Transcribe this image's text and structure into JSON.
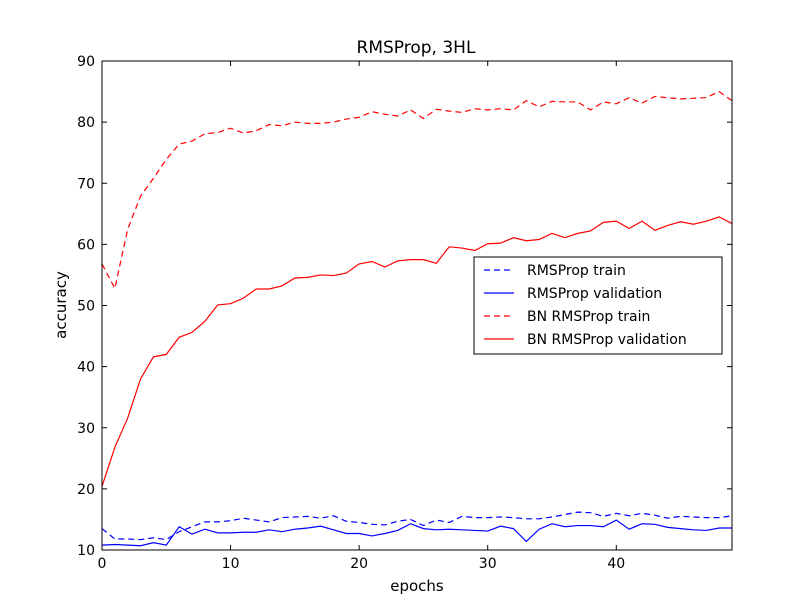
{
  "chart_data": {
    "type": "line",
    "title": "RMSProp, 3HL",
    "xlabel": "epochs",
    "ylabel": "accuracy",
    "xlim": [
      0,
      49
    ],
    "ylim": [
      10,
      90
    ],
    "xticks": [
      0,
      10,
      20,
      30,
      40
    ],
    "yticks": [
      10,
      20,
      30,
      40,
      50,
      60,
      70,
      80,
      90
    ],
    "grid": false,
    "legend_position": "center-right",
    "x": [
      0,
      1,
      2,
      3,
      4,
      5,
      6,
      7,
      8,
      9,
      10,
      11,
      12,
      13,
      14,
      15,
      16,
      17,
      18,
      19,
      20,
      21,
      22,
      23,
      24,
      25,
      26,
      27,
      28,
      29,
      30,
      31,
      32,
      33,
      34,
      35,
      36,
      37,
      38,
      39,
      40,
      41,
      42,
      43,
      44,
      45,
      46,
      47,
      48,
      49
    ],
    "series": [
      {
        "name": "RMSProp train",
        "color": "#0000ff",
        "style": "dashed",
        "values": [
          13.5,
          11.8,
          11.8,
          11.7,
          12.0,
          11.7,
          13.0,
          13.8,
          14.6,
          14.6,
          14.8,
          15.2,
          14.9,
          14.6,
          15.3,
          15.4,
          15.5,
          15.2,
          15.6,
          14.7,
          14.5,
          14.2,
          14.1,
          14.7,
          15.0,
          14.0,
          14.9,
          14.5,
          15.5,
          15.3,
          15.3,
          15.4,
          15.3,
          15.1,
          15.1,
          15.4,
          15.8,
          16.2,
          16.1,
          15.5,
          16.0,
          15.6,
          16.0,
          15.7,
          15.2,
          15.5,
          15.4,
          15.3,
          15.3,
          15.6
        ]
      },
      {
        "name": "RMSProp validation",
        "color": "#0000ff",
        "style": "solid",
        "values": [
          10.8,
          10.9,
          10.8,
          10.7,
          11.2,
          10.8,
          13.8,
          12.6,
          13.4,
          12.8,
          12.8,
          12.9,
          12.9,
          13.3,
          13.0,
          13.4,
          13.6,
          13.9,
          13.3,
          12.7,
          12.7,
          12.3,
          12.7,
          13.2,
          14.3,
          13.5,
          13.3,
          13.4,
          13.3,
          13.2,
          13.1,
          13.9,
          13.5,
          11.4,
          13.4,
          14.3,
          13.8,
          14.0,
          14.0,
          13.8,
          14.9,
          13.4,
          14.3,
          14.2,
          13.7,
          13.5,
          13.3,
          13.2,
          13.6,
          13.6
        ]
      },
      {
        "name": "BN RMSProp train",
        "color": "#ff0000",
        "style": "dashed",
        "values": [
          56.8,
          52.8,
          62.5,
          67.9,
          70.8,
          73.9,
          76.4,
          76.9,
          78.1,
          78.3,
          79.0,
          78.2,
          78.6,
          79.6,
          79.4,
          80.0,
          79.8,
          79.8,
          80.0,
          80.5,
          80.8,
          81.7,
          81.3,
          81.0,
          82.0,
          80.6,
          82.1,
          81.8,
          81.6,
          82.2,
          82.0,
          82.2,
          82.0,
          83.5,
          82.5,
          83.4,
          83.3,
          83.3,
          82.0,
          83.3,
          83.0,
          84.0,
          83.1,
          84.2,
          84.0,
          83.8,
          83.9,
          84.0,
          85.0,
          83.5
        ]
      },
      {
        "name": "BN RMSProp validation",
        "color": "#ff0000",
        "style": "solid",
        "values": [
          20.4,
          26.8,
          31.6,
          38.0,
          41.6,
          42.0,
          44.8,
          45.6,
          47.4,
          50.1,
          50.3,
          51.2,
          52.7,
          52.7,
          53.2,
          54.5,
          54.6,
          55.0,
          54.9,
          55.3,
          56.8,
          57.2,
          56.3,
          57.3,
          57.5,
          57.5,
          56.9,
          59.6,
          59.4,
          59.0,
          60.1,
          60.2,
          61.1,
          60.6,
          60.8,
          61.8,
          61.1,
          61.8,
          62.2,
          63.6,
          63.8,
          62.6,
          63.8,
          62.3,
          63.1,
          63.7,
          63.3,
          63.8,
          64.5,
          63.4
        ]
      }
    ]
  }
}
